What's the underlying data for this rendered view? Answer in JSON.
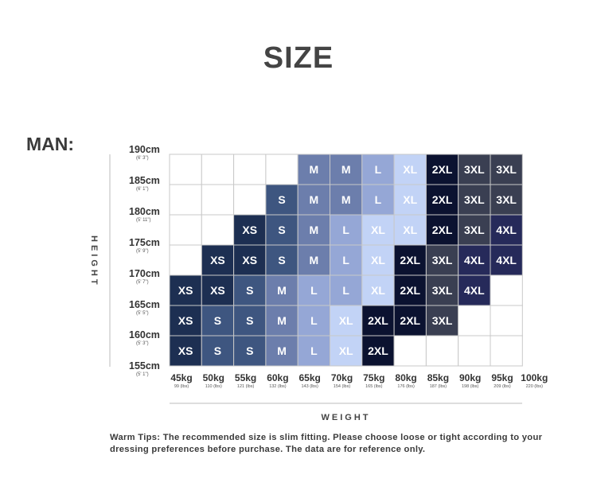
{
  "title": "SIZE",
  "section_label": "MAN:",
  "chart_data": {
    "type": "heatmap",
    "y_axis_title": "HEIGHT",
    "x_axis_title": "WEIGHT",
    "heights": [
      {
        "cm": "190cm",
        "ft": "(6' 3\")"
      },
      {
        "cm": "185cm",
        "ft": "(6' 1\")"
      },
      {
        "cm": "180cm",
        "ft": "(5' 11\")"
      },
      {
        "cm": "175cm",
        "ft": "(5' 9\")"
      },
      {
        "cm": "170cm",
        "ft": "(5' 7\")"
      },
      {
        "cm": "165cm",
        "ft": "(5' 5\")"
      },
      {
        "cm": "160cm",
        "ft": "(5' 3\")"
      },
      {
        "cm": "155cm",
        "ft": "(5' 1\")"
      }
    ],
    "weights": [
      {
        "kg": "45kg",
        "lbs": "99 (lbs)"
      },
      {
        "kg": "50kg",
        "lbs": "110 (lbs)"
      },
      {
        "kg": "55kg",
        "lbs": "121 (lbs)"
      },
      {
        "kg": "60kg",
        "lbs": "132 (lbs)"
      },
      {
        "kg": "65kg",
        "lbs": "143 (lbs)"
      },
      {
        "kg": "70kg",
        "lbs": "154 (lbs)"
      },
      {
        "kg": "75kg",
        "lbs": "165 (lbs)"
      },
      {
        "kg": "80kg",
        "lbs": "176 (lbs)"
      },
      {
        "kg": "85kg",
        "lbs": "187 (lbs)"
      },
      {
        "kg": "90kg",
        "lbs": "198 (lbs)"
      },
      {
        "kg": "95kg",
        "lbs": "209 (lbs)"
      },
      {
        "kg": "100kg",
        "lbs": "220 (lbs)"
      }
    ],
    "grid": [
      [
        "",
        "",
        "",
        "",
        "M",
        "M",
        "L",
        "XL",
        "2XL",
        "3XL",
        "3XL"
      ],
      [
        "",
        "",
        "",
        "S",
        "M",
        "M",
        "L",
        "XL",
        "2XL",
        "3XL",
        "3XL"
      ],
      [
        "",
        "",
        "XS",
        "S",
        "M",
        "L",
        "XL",
        "XL",
        "2XL",
        "3XL",
        "4XL"
      ],
      [
        "",
        "XS",
        "XS",
        "S",
        "M",
        "L",
        "XL",
        "2XL",
        "3XL",
        "4XL",
        "4XL"
      ],
      [
        "XS",
        "XS",
        "S",
        "M",
        "L",
        "L",
        "XL",
        "2XL",
        "3XL",
        "4XL",
        ""
      ],
      [
        "XS",
        "S",
        "S",
        "M",
        "L",
        "XL",
        "2XL",
        "2XL",
        "3XL",
        "",
        ""
      ],
      [
        "XS",
        "S",
        "S",
        "M",
        "L",
        "XL",
        "2XL",
        "",
        "",
        "",
        ""
      ]
    ],
    "size_colors": {
      "XS": "#1d2f52",
      "S": "#3e5680",
      "M": "#6c7eac",
      "L": "#95a7d6",
      "XL": "#c2d3f6",
      "2XL": "#0b1230",
      "3XL": "#3a3f52",
      "4XL": "#262a5a"
    }
  },
  "note": "Warm Tips: The recommended size is slim fitting. Please choose loose or tight according to your dressing preferences before purchase. The data are for reference only."
}
